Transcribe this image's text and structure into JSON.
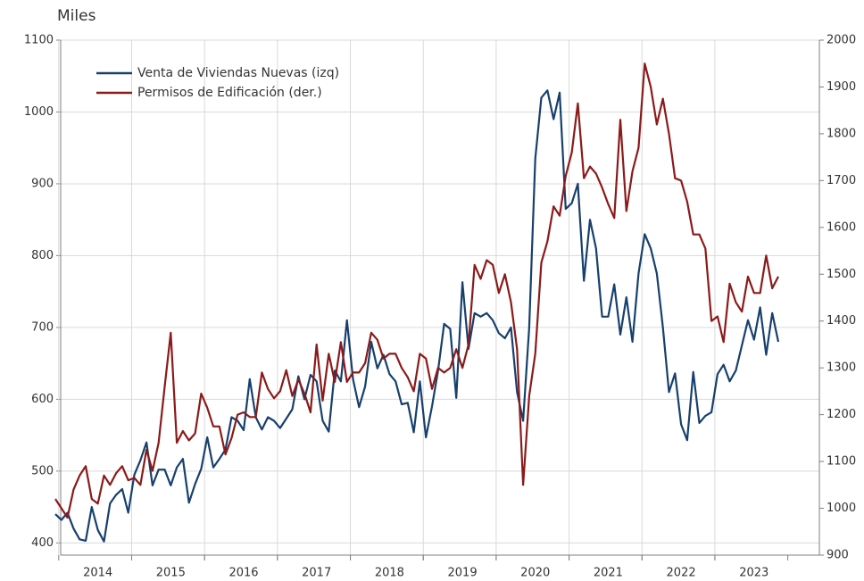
{
  "chart_data": {
    "type": "line",
    "y_label": "Miles",
    "categories": [
      null,
      null,
      null,
      null,
      null,
      null,
      null,
      "2014",
      null,
      null,
      null,
      null,
      null,
      null,
      null,
      null,
      null,
      null,
      null,
      "2015",
      null,
      null,
      null,
      null,
      null,
      null,
      null,
      null,
      null,
      null,
      null,
      "2016",
      null,
      null,
      null,
      null,
      null,
      null,
      null,
      null,
      null,
      null,
      null,
      "2017",
      null,
      null,
      null,
      null,
      null,
      null,
      null,
      null,
      null,
      null,
      null,
      "2018",
      null,
      null,
      null,
      null,
      null,
      null,
      null,
      null,
      null,
      null,
      null,
      "2019",
      null,
      null,
      null,
      null,
      null,
      null,
      null,
      null,
      null,
      null,
      null,
      "2020",
      null,
      null,
      null,
      null,
      null,
      null,
      null,
      null,
      null,
      null,
      null,
      "2021",
      null,
      null,
      null,
      null,
      null,
      null,
      null,
      null,
      null,
      null,
      null,
      "2022",
      null,
      null,
      null,
      null,
      null,
      null,
      null,
      null,
      null,
      null,
      null,
      "2023",
      null,
      null,
      null,
      null
    ],
    "series": [
      {
        "name": "Venta de Viviendas Nuevas (izq)",
        "color": "#17406d",
        "axis": "y",
        "values": [
          440,
          432,
          442,
          420,
          405,
          403,
          450,
          418,
          402,
          455,
          467,
          475,
          442,
          495,
          515,
          540,
          480,
          502,
          502,
          480,
          505,
          517,
          456,
          482,
          503,
          547,
          505,
          517,
          530,
          575,
          570,
          557,
          628,
          575,
          558,
          575,
          570,
          560,
          573,
          586,
          632,
          600,
          634,
          625,
          570,
          555,
          640,
          625,
          710,
          628,
          589,
          618,
          680,
          643,
          662,
          635,
          625,
          593,
          595,
          554,
          625,
          547,
          590,
          640,
          705,
          698,
          602,
          763,
          670,
          720,
          715,
          720,
          710,
          692,
          685,
          700,
          610,
          570,
          700,
          935,
          1020,
          1030,
          990,
          1027,
          865,
          873,
          900,
          765,
          850,
          810,
          715,
          715,
          760,
          690,
          742,
          680,
          775,
          830,
          810,
          775,
          700,
          610,
          636,
          565,
          543,
          638,
          567,
          577,
          582,
          635,
          648,
          625,
          640,
          675,
          710,
          683,
          728,
          662,
          720,
          680
        ]
      },
      {
        "name": "Permisos  de Edificación (der.)",
        "color": "#8b1a1a",
        "axis": "y2",
        "values": [
          1020,
          1000,
          980,
          1040,
          1070,
          1090,
          1020,
          1010,
          1070,
          1050,
          1075,
          1090,
          1060,
          1065,
          1050,
          1125,
          1080,
          1140,
          1260,
          1375,
          1140,
          1165,
          1145,
          1160,
          1245,
          1215,
          1175,
          1175,
          1115,
          1150,
          1200,
          1205,
          1195,
          1195,
          1290,
          1255,
          1235,
          1250,
          1295,
          1240,
          1275,
          1245,
          1205,
          1350,
          1230,
          1330,
          1270,
          1355,
          1270,
          1290,
          1290,
          1310,
          1375,
          1360,
          1320,
          1330,
          1330,
          1300,
          1280,
          1250,
          1330,
          1320,
          1255,
          1300,
          1290,
          1300,
          1340,
          1300,
          1350,
          1520,
          1490,
          1530,
          1520,
          1460,
          1500,
          1440,
          1340,
          1050,
          1240,
          1330,
          1525,
          1570,
          1645,
          1625,
          1710,
          1760,
          1865,
          1705,
          1730,
          1715,
          1685,
          1650,
          1620,
          1830,
          1635,
          1720,
          1770,
          1950,
          1900,
          1820,
          1875,
          1800,
          1705,
          1700,
          1655,
          1585,
          1585,
          1555,
          1400,
          1410,
          1355,
          1480,
          1440,
          1420,
          1495,
          1460,
          1460,
          1540,
          1470,
          1495
        ]
      }
    ],
    "ylim": [
      383,
      1100
    ],
    "yticks": [
      400,
      500,
      600,
      700,
      800,
      900,
      1000,
      1100
    ],
    "y2lim": [
      900,
      2000
    ],
    "y2ticks": [
      900,
      1000,
      1100,
      1200,
      1300,
      1400,
      1500,
      1600,
      1700,
      1800,
      1900,
      2000
    ],
    "grid": true,
    "legend": "upper left"
  }
}
